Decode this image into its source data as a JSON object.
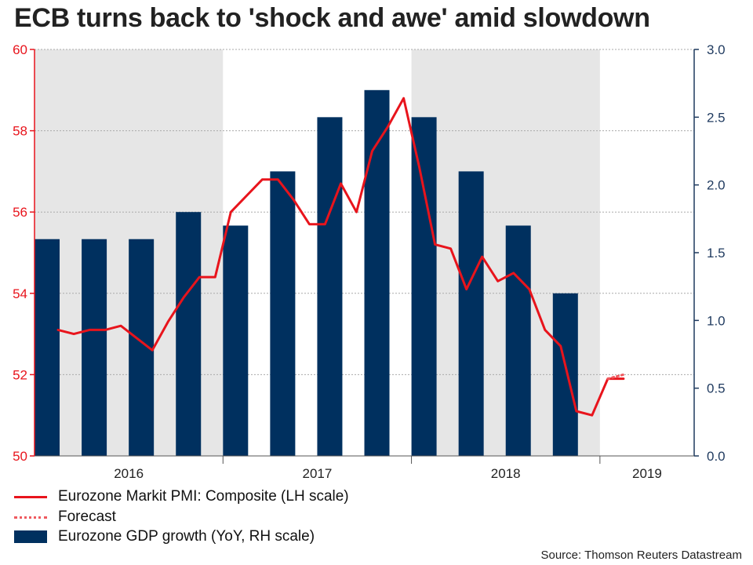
{
  "title": "ECB turns back to 'shock and awe' amid slowdown",
  "source": "Source: Thomson Reuters Datastream",
  "colors": {
    "pmi_line": "#e8141c",
    "forecast_line": "#ef5a5f",
    "gdp_bars": "#00305f",
    "left_axis": "#e8141c",
    "right_axis": "#1f3a5f",
    "shade": "#e6e6e6",
    "grid": "#aaaaaa"
  },
  "legend": [
    {
      "label": "Eurozone Markit PMI: Composite (LH scale)",
      "icon": "solid-red-line"
    },
    {
      "label": "Forecast",
      "icon": "dotted-red-line"
    },
    {
      "label": "Eurozone GDP growth (YoY, RH scale)",
      "icon": "navy-bar"
    }
  ],
  "chart_data": {
    "type": "bar+line",
    "title": "ECB turns back to 'shock and awe' amid slowdown",
    "x_range_months": [
      0,
      42
    ],
    "years": [
      {
        "label": "2016",
        "start_month": 0,
        "end_month": 12,
        "shaded": true
      },
      {
        "label": "2017",
        "start_month": 12,
        "end_month": 24,
        "shaded": false
      },
      {
        "label": "2018",
        "start_month": 24,
        "end_month": 36,
        "shaded": true
      },
      {
        "label": "2019",
        "start_month": 36,
        "end_month": 42,
        "shaded": false
      }
    ],
    "left_axis": {
      "label": "",
      "min": 50,
      "max": 60,
      "ticks": [
        50,
        52,
        54,
        56,
        58,
        60
      ]
    },
    "right_axis": {
      "label": "",
      "min": 0.0,
      "max": 3.0,
      "ticks": [
        "0.0",
        "0.5",
        "1.0",
        "1.5",
        "2.0",
        "2.5",
        "3.0"
      ]
    },
    "bars": {
      "name": "Eurozone GDP growth (YoY, RH scale)",
      "axis": "right",
      "centers_month": [
        0.8,
        3.8,
        6.8,
        9.8,
        12.8,
        15.8,
        18.8,
        21.8,
        24.8,
        27.8,
        30.8,
        33.8
      ],
      "values": [
        1.6,
        1.6,
        1.6,
        1.8,
        1.7,
        2.1,
        2.5,
        2.7,
        2.5,
        2.1,
        1.7,
        1.2
      ]
    },
    "series": [
      {
        "name": "Eurozone Markit PMI: Composite (LH scale)",
        "axis": "left",
        "style": "solid",
        "x_month": [
          1.5,
          2.5,
          3.5,
          4.5,
          5.5,
          6.5,
          7.5,
          8.5,
          9.5,
          10.5,
          11.5,
          12.5,
          13.5,
          14.5,
          15.5,
          16.5,
          17.5,
          18.5,
          19.5,
          20.5,
          21.5,
          22.5,
          23.5,
          24.5,
          25.5,
          26.5,
          27.5,
          28.5,
          29.5,
          30.5,
          31.5,
          32.5,
          33.5,
          34.5,
          35.5,
          36.5,
          37.5
        ],
        "values": [
          53.1,
          53.0,
          53.1,
          53.1,
          53.2,
          52.9,
          52.6,
          53.3,
          53.9,
          54.4,
          54.4,
          56.0,
          56.4,
          56.8,
          56.8,
          56.3,
          55.7,
          55.7,
          56.7,
          56.0,
          57.5,
          58.1,
          58.8,
          57.1,
          55.2,
          55.1,
          54.1,
          54.9,
          54.3,
          54.5,
          54.1,
          53.1,
          52.7,
          51.1,
          51.0,
          51.9,
          51.9
        ]
      },
      {
        "name": "Forecast",
        "axis": "left",
        "style": "dotted",
        "x_month": [
          36.5,
          37.5
        ],
        "values": [
          51.9,
          52.0
        ]
      }
    ]
  }
}
